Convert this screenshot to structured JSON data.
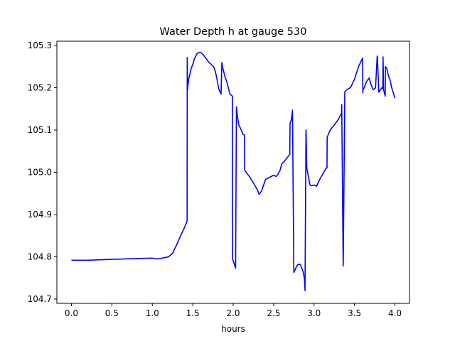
{
  "chart_data": {
    "type": "line",
    "title": "Water Depth h at gauge 530",
    "xlabel": "hours",
    "ylabel": "",
    "xlim": [
      -0.18,
      4.18
    ],
    "ylim": [
      104.69,
      105.31
    ],
    "xticks": [
      0.0,
      0.5,
      1.0,
      1.5,
      2.0,
      2.5,
      3.0,
      3.5,
      4.0
    ],
    "xtick_labels": [
      "0.0",
      "0.5",
      "1.0",
      "1.5",
      "2.0",
      "2.5",
      "3.0",
      "3.5",
      "4.0"
    ],
    "yticks": [
      104.7,
      104.8,
      104.9,
      105.0,
      105.1,
      105.2,
      105.3
    ],
    "ytick_labels": [
      "104.7",
      "104.8",
      "104.9",
      "105.0",
      "105.1",
      "105.2",
      "105.3"
    ],
    "grid": false,
    "line_color": "#0000ff",
    "series": [
      {
        "x": [
          0.0,
          0.2,
          0.5,
          0.8,
          1.0,
          1.05,
          1.1,
          1.15,
          1.2,
          1.25,
          1.3,
          1.35,
          1.4,
          1.43,
          1.432,
          1.435,
          1.44,
          1.45,
          1.48,
          1.5,
          1.52,
          1.55,
          1.58,
          1.6,
          1.63,
          1.66,
          1.7,
          1.73,
          1.76,
          1.78,
          1.8,
          1.82,
          1.85,
          1.86,
          1.862,
          1.87,
          1.9,
          1.92,
          1.94,
          1.96,
          1.99,
          1.993,
          2.03,
          2.04,
          2.043,
          2.05,
          2.07,
          2.1,
          2.12,
          2.14,
          2.142,
          2.16,
          2.2,
          2.25,
          2.3,
          2.32,
          2.35,
          2.38,
          2.4,
          2.45,
          2.5,
          2.53,
          2.55,
          2.58,
          2.6,
          2.63,
          2.67,
          2.69,
          2.7,
          2.703,
          2.72,
          2.73,
          2.733,
          2.75,
          2.78,
          2.8,
          2.83,
          2.86,
          2.88,
          2.885,
          2.888,
          2.9,
          2.902,
          2.91,
          2.93,
          2.95,
          2.97,
          3.0,
          3.03,
          3.05,
          3.08,
          3.1,
          3.12,
          3.15,
          3.16,
          3.162,
          3.2,
          3.25,
          3.3,
          3.34,
          3.342,
          3.36,
          3.362,
          3.38,
          3.4,
          3.45,
          3.5,
          3.55,
          3.58,
          3.6,
          3.603,
          3.605,
          3.62,
          3.65,
          3.68,
          3.7,
          3.73,
          3.76,
          3.78,
          3.783,
          3.8,
          3.805,
          3.82,
          3.84,
          3.85,
          3.853,
          3.86,
          3.88,
          3.882,
          3.9,
          3.92,
          3.94,
          3.96,
          3.98,
          4.0
        ],
        "y": [
          104.792,
          104.792,
          104.794,
          104.796,
          104.797,
          104.795,
          104.796,
          104.798,
          104.8,
          104.808,
          104.828,
          104.85,
          104.87,
          104.885,
          105.272,
          105.195,
          105.205,
          105.22,
          105.245,
          105.255,
          105.268,
          105.28,
          105.284,
          105.283,
          105.278,
          105.27,
          105.26,
          105.255,
          105.249,
          105.238,
          105.22,
          105.198,
          105.185,
          105.26,
          105.255,
          105.248,
          105.225,
          105.215,
          105.2,
          105.185,
          105.18,
          104.795,
          104.773,
          105.155,
          105.15,
          105.135,
          105.112,
          105.1,
          105.09,
          105.088,
          105.005,
          105.0,
          104.99,
          104.975,
          104.958,
          104.948,
          104.955,
          104.972,
          104.983,
          104.988,
          104.993,
          104.99,
          104.994,
          105.005,
          105.02,
          105.025,
          105.035,
          105.04,
          105.042,
          105.115,
          105.125,
          105.14,
          105.147,
          104.763,
          104.776,
          104.782,
          104.782,
          104.768,
          104.75,
          104.735,
          104.72,
          105.1,
          105.09,
          105.01,
          104.99,
          104.97,
          104.968,
          104.97,
          104.967,
          104.975,
          104.987,
          104.993,
          105.0,
          105.01,
          105.01,
          105.083,
          105.1,
          105.112,
          105.125,
          105.14,
          105.16,
          104.778,
          104.8,
          105.19,
          105.195,
          105.2,
          105.22,
          105.25,
          105.262,
          105.27,
          105.188,
          105.195,
          105.2,
          105.215,
          105.223,
          105.21,
          105.195,
          105.2,
          105.273,
          105.275,
          105.19,
          105.19,
          105.195,
          105.2,
          105.198,
          105.273,
          105.195,
          105.18,
          105.25,
          105.245,
          105.228,
          105.218,
          105.2,
          105.188,
          105.175
        ]
      }
    ]
  }
}
